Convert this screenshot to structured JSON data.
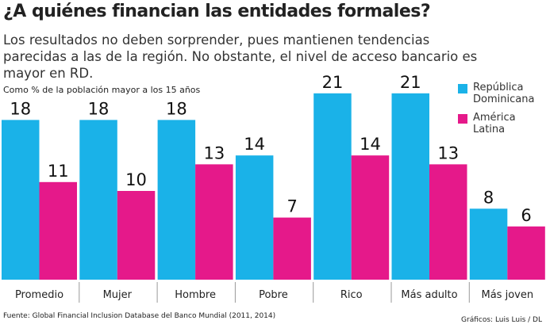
{
  "chart_data": {
    "type": "bar",
    "title": "¿A quiénes financian las entidades formales?",
    "subtitle": "Los resultados no deben sorprender, pues mantienen tendencias parecidas a las de la región. No obstante, el nivel de acceso bancario es mayor en RD.",
    "y_label": "Como % de la población mayor a los 15 años",
    "categories": [
      "Promedio",
      "Mujer",
      "Hombre",
      "Pobre",
      "Rico",
      "Más adulto",
      "Más joven"
    ],
    "series": [
      {
        "name": "República Dominicana",
        "color": "#1ab2e8",
        "values": [
          18,
          18,
          18,
          14,
          21,
          21,
          8
        ]
      },
      {
        "name": "América Latina",
        "color": "#e5198a",
        "values": [
          11,
          10,
          13,
          7,
          14,
          13,
          6
        ]
      }
    ],
    "legend": "top-right",
    "source": "Fuente: Global Financial Inclusion Database  del Banco Mundial (2011, 2014)",
    "credit": "Gráficos: Luis Luis / DL"
  }
}
